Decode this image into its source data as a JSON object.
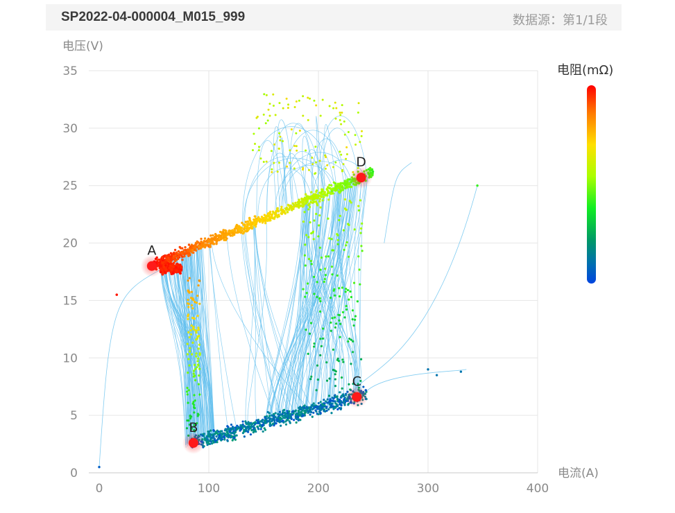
{
  "header": {
    "title": "SP2022-04-000004_M015_999",
    "data_source": "数据源：第1/1段"
  },
  "chart_data": {
    "type": "scatter",
    "ylabel": "电压(V)",
    "xlabel": "电流(A)",
    "colorbar_label": "电阻(mΩ)",
    "xlim": [
      0,
      400
    ],
    "ylim": [
      0,
      35
    ],
    "x_ticks": [
      "0",
      "100",
      "200",
      "300",
      "400"
    ],
    "y_ticks": [
      "0",
      "5",
      "10",
      "15",
      "20",
      "25",
      "30",
      "35"
    ],
    "grid": true,
    "key_points": [
      {
        "label": "A",
        "x": 48,
        "y": 18.0
      },
      {
        "label": "B",
        "x": 86,
        "y": 2.6
      },
      {
        "label": "C",
        "x": 235,
        "y": 6.6
      },
      {
        "label": "D",
        "x": 239,
        "y": 25.7
      }
    ],
    "colors": {
      "trace": "#62bfee",
      "highlight": "#ff1a1a",
      "gradient": [
        "#ff0000",
        "#ff8c00",
        "#ffd700",
        "#aaff00",
        "#22ee22",
        "#00aa55",
        "#008899",
        "#0044dd"
      ]
    }
  }
}
